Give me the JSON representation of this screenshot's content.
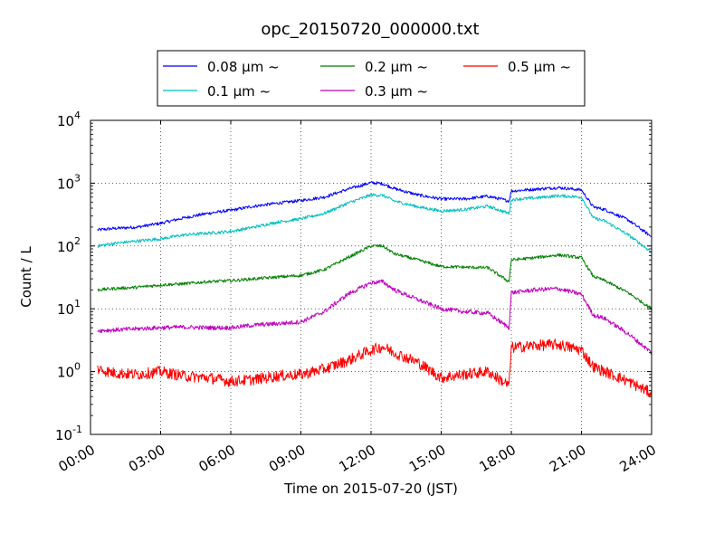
{
  "chart_data": {
    "type": "line",
    "title": "opc_20150720_000000.txt",
    "xlabel": "Time on 2015-07-20 (JST)",
    "ylabel": "Count / L",
    "yscale": "log",
    "ylim": [
      0.1,
      10000
    ],
    "y_ticks": [
      {
        "base": "10",
        "exp": "-1"
      },
      {
        "base": "10",
        "exp": "0"
      },
      {
        "base": "10",
        "exp": "1"
      },
      {
        "base": "10",
        "exp": "2"
      },
      {
        "base": "10",
        "exp": "3"
      },
      {
        "base": "10",
        "exp": "4"
      }
    ],
    "x_ticks": [
      "00:00",
      "03:00",
      "06:00",
      "09:00",
      "12:00",
      "15:00",
      "18:00",
      "21:00",
      "24:00"
    ],
    "xlim_hours": [
      0,
      24
    ],
    "grid": true,
    "legend": {
      "placement": "top-center",
      "columns": 3
    },
    "series": [
      {
        "name": "0.08 μm ~",
        "color": "#0000ff",
        "x": [
          0.3,
          1,
          2,
          3,
          4,
          5,
          6,
          7,
          8,
          9,
          10,
          11,
          12,
          12.5,
          13,
          14,
          15,
          16,
          17,
          17.9,
          18.0,
          19,
          20,
          21,
          21.5,
          22,
          23,
          24
        ],
        "y": [
          180,
          190,
          200,
          230,
          280,
          330,
          370,
          430,
          480,
          530,
          600,
          800,
          1020,
          980,
          820,
          650,
          560,
          560,
          620,
          520,
          750,
          800,
          850,
          780,
          420,
          380,
          260,
          140
        ]
      },
      {
        "name": "0.1 μm ~",
        "color": "#00bfbf",
        "x": [
          0.3,
          1,
          2,
          3,
          4,
          5,
          6,
          7,
          8,
          9,
          10,
          11,
          12,
          12.5,
          13,
          14,
          15,
          16,
          17,
          17.9,
          18.0,
          19,
          20,
          21,
          21.5,
          22,
          23,
          24
        ],
        "y": [
          100,
          110,
          120,
          130,
          150,
          160,
          170,
          200,
          240,
          270,
          330,
          480,
          650,
          640,
          520,
          420,
          360,
          380,
          430,
          330,
          550,
          580,
          630,
          600,
          280,
          250,
          150,
          80
        ]
      },
      {
        "name": "0.2 μm ~",
        "color": "#008000",
        "x": [
          0.3,
          1,
          2,
          3,
          4,
          5,
          6,
          7,
          8,
          9,
          10,
          11,
          12,
          12.5,
          13,
          14,
          15,
          16,
          17,
          17.9,
          18.0,
          19,
          20,
          21,
          21.5,
          22,
          23,
          24
        ],
        "y": [
          20,
          21,
          22,
          24,
          25,
          27,
          28,
          30,
          32,
          34,
          42,
          65,
          100,
          100,
          75,
          60,
          47,
          46,
          45,
          27,
          60,
          65,
          72,
          65,
          33,
          28,
          18,
          10
        ]
      },
      {
        "name": "0.3 μm ~",
        "color": "#bf00bf",
        "x": [
          0.3,
          1,
          2,
          3,
          4,
          5,
          6,
          7,
          8,
          9,
          10,
          11,
          12,
          12.5,
          13,
          14,
          15,
          16,
          17,
          17.9,
          18.0,
          19,
          20,
          21,
          21.5,
          22,
          23,
          24
        ],
        "y": [
          4.5,
          4.6,
          4.8,
          5.0,
          5.1,
          5.0,
          5.0,
          5.5,
          5.8,
          6.2,
          9,
          17,
          26,
          27,
          20,
          14,
          10,
          9,
          8.5,
          5,
          18,
          20,
          21,
          17,
          8,
          7,
          4,
          2
        ]
      },
      {
        "name": "0.5 μm ~",
        "color": "#ff0000",
        "x": [
          0.3,
          1,
          2,
          3,
          4,
          5,
          6,
          7,
          8,
          9,
          10,
          11,
          12,
          12.5,
          13,
          14,
          15,
          16,
          17,
          17.9,
          18.0,
          19,
          20,
          21,
          21.5,
          22,
          23,
          24
        ],
        "y": [
          1.1,
          0.95,
          0.9,
          1.0,
          0.85,
          0.8,
          0.7,
          0.75,
          0.85,
          0.9,
          1.1,
          1.5,
          2.2,
          2.5,
          2.0,
          1.4,
          0.8,
          0.9,
          1.0,
          0.6,
          2.4,
          2.6,
          2.7,
          2.2,
          1.2,
          1.0,
          0.7,
          0.45
        ]
      }
    ]
  }
}
